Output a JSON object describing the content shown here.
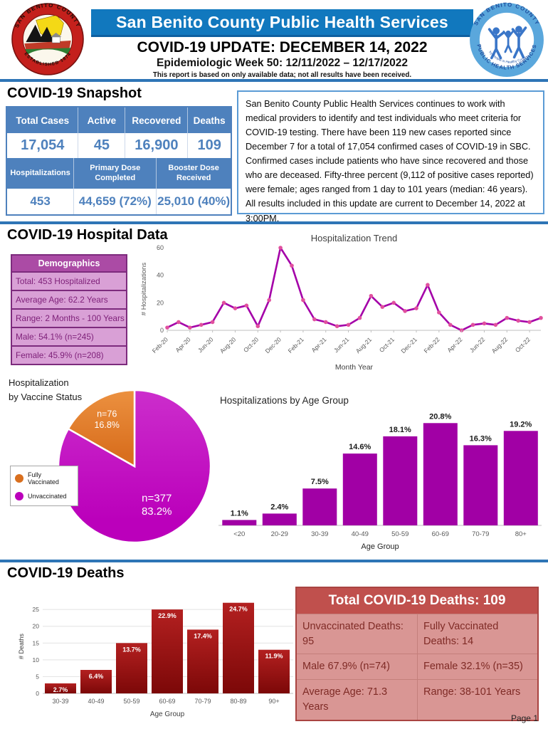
{
  "header": {
    "banner_title": "San Benito County Public Health Services",
    "title": "COVID-19 UPDATE: DECEMBER 14, 2022",
    "subtitle": "Epidemiologic Week 50: 12/11/2022 – 12/17/2022",
    "disclaimer": "This report is based on only available data; not all results have been received.",
    "left_seal": {
      "top_text": "SAN BENITO COUNTY",
      "bottom_text": "ESTABLISHED 1874"
    },
    "right_seal": {
      "top_text": "SAN BENITO COUNTY",
      "bottom_text": "PUBLIC HEALTH SERVICES",
      "center_text": "Healthy People in Healthy Communities"
    }
  },
  "snapshot": {
    "heading": "COVID-19 Snapshot",
    "row1_headers": [
      "Total Cases",
      "Active",
      "Recovered",
      "Deaths"
    ],
    "row1_values": [
      "17,054",
      "45",
      "16,900",
      "109"
    ],
    "row2_headers": [
      "Hospitalizations",
      "Primary Dose Completed",
      "Booster Dose Received"
    ],
    "row2_values": [
      "453",
      "44,659 (72%)",
      "25,010 (40%)"
    ],
    "paragraph": "San Benito County Public Health Services continues to work with medical providers to identify and test individuals who meet criteria for COVID-19 testing. There have been 119 new cases reported since December 7 for a total of 17,054 confirmed cases of COVID-19 in SBC. Confirmed cases include patients who have since recovered and those who are deceased. Fifty-three percent (9,112 of positive cases reported) were female; ages ranged from 1 day to 101 years (median: 46 years). All results included in this update are current to December 14, 2022 at 3:00PM."
  },
  "hospital": {
    "heading": "COVID-19 Hospital Data",
    "demographics": {
      "header": "Demographics",
      "rows": [
        "Total: 453 Hospitalized",
        "Average Age: 62.2 Years",
        "Range: 2 Months - 100 Years",
        "Male: 54.1% (n=245)",
        "Female: 45.9% (n=208)"
      ]
    },
    "pie_title_line1": "Hospitalization",
    "pie_title_line2": "by Vaccine Status",
    "legend": [
      "Fully Vaccinated",
      "Unvaccinated"
    ]
  },
  "deaths": {
    "heading": "COVID-19 Deaths",
    "table": {
      "header": "Total COVID-19 Deaths: 109",
      "rows": [
        [
          "Unvaccinated Deaths: 95",
          "Fully Vaccinated Deaths: 14"
        ],
        [
          "Male 67.9% (n=74)",
          "Female 32.1% (n=35)"
        ],
        [
          "Average Age: 71.3 Years",
          "Range: 38-101 Years"
        ]
      ]
    }
  },
  "footer": {
    "page": "Page 1"
  },
  "colors": {
    "banner_blue": "#1178BE",
    "divider_blue": "#2E75B6",
    "snapshot_table_blue": "#4E81BD",
    "demographics_purple": "#AB4BA5",
    "demographics_light_purple": "#D9A0D6",
    "magenta": "#BB00BB",
    "orange": "#E07B27",
    "deaths_bar_red": "#8F0E0E",
    "deaths_table_header_red": "#C0504D",
    "deaths_table_body_pink": "#D99694"
  },
  "chart_data": [
    {
      "id": "hospitalization_trend",
      "type": "line",
      "title": "Hospitalization Trend",
      "xlabel": "Month Year",
      "ylabel": "# Hospitalizations",
      "ylim": [
        0,
        60
      ],
      "yticks": [
        0,
        20,
        40,
        60
      ],
      "grid": false,
      "line_color": "#A400A8",
      "marker_color": "#E0519E",
      "x": [
        "Feb-20",
        "Mar-20",
        "Apr-20",
        "May-20",
        "Jun-20",
        "Jul-20",
        "Aug-20",
        "Sep-20",
        "Oct-20",
        "Nov-20",
        "Dec-20",
        "Jan-21",
        "Feb-21",
        "Mar-21",
        "Apr-21",
        "May-21",
        "Jun-21",
        "Jul-21",
        "Aug-21",
        "Sep-21",
        "Oct-21",
        "Nov-21",
        "Dec-21",
        "Jan-22",
        "Feb-22",
        "Mar-22",
        "Apr-22",
        "May-22",
        "Jun-22",
        "Jul-22",
        "Aug-22",
        "Sep-22",
        "Oct-22",
        "Nov-22"
      ],
      "values": [
        2,
        6,
        2,
        4,
        6,
        20,
        16,
        18,
        3,
        22,
        60,
        47,
        22,
        8,
        6,
        3,
        4,
        9,
        25,
        17,
        20,
        14,
        16,
        33,
        13,
        4,
        0,
        4,
        5,
        4,
        9,
        7,
        6,
        9
      ],
      "xtick_every": 2
    },
    {
      "id": "vaccine_status_pie",
      "type": "pie",
      "title": "Hospitalization by Vaccine Status",
      "legend_position": "left",
      "slices": [
        {
          "label": "Fully Vaccinated",
          "n": 76,
          "pct": 16.8,
          "color": "#D96F1E",
          "color_light": "#EC9140",
          "label_lines": [
            "n=76",
            "16.8%"
          ],
          "label_r": 0.72,
          "label_size": 12.5
        },
        {
          "label": "Unvaccinated",
          "n": 377,
          "pct": 83.2,
          "color": "#BB00BB",
          "color_light": "#CC2ECC",
          "label_lines": [
            "n=377",
            "83.2%"
          ],
          "label_r": 0.58,
          "label_size": 15
        }
      ]
    },
    {
      "id": "hospitalizations_by_age_group",
      "type": "bar",
      "title": "Hospitalizations by Age Group",
      "xlabel": "Age Group",
      "categories": [
        "<20",
        "20-29",
        "30-39",
        "40-49",
        "50-59",
        "60-69",
        "70-79",
        "80+"
      ],
      "values": [
        1.1,
        2.4,
        7.5,
        14.6,
        18.1,
        20.8,
        16.3,
        19.2
      ],
      "labels": [
        "1.1%",
        "2.4%",
        "7.5%",
        "14.6%",
        "18.1%",
        "20.8%",
        "16.3%",
        "19.2%"
      ],
      "ylim": [
        0,
        22
      ],
      "bar_color": "#A100A5"
    },
    {
      "id": "deaths_by_age_group",
      "type": "bar",
      "title": "",
      "xlabel": "Age Group",
      "ylabel": "# Deaths",
      "categories": [
        "30-39",
        "40-49",
        "50-59",
        "60-69",
        "70-79",
        "80-89",
        "90+"
      ],
      "values": [
        3,
        7,
        15,
        25,
        19,
        27,
        13
      ],
      "labels": [
        "2.7%",
        "6.4%",
        "13.7%",
        "22.9%",
        "17.4%",
        "24.7%",
        "11.9%"
      ],
      "yticks": [
        0,
        5,
        10,
        15,
        20,
        25
      ],
      "ylim": [
        0,
        28
      ],
      "grid": true,
      "bar_color": "#7C0808",
      "bar_color_light": "#B32020"
    }
  ]
}
